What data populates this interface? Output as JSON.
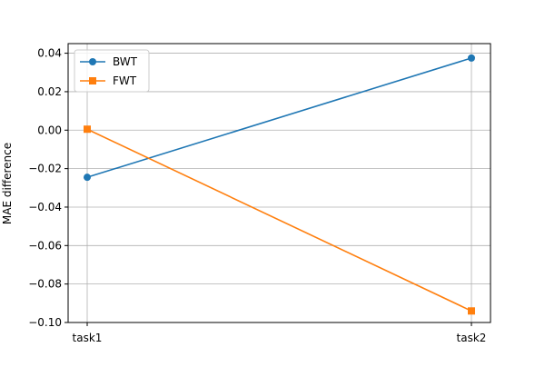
{
  "chart_data": {
    "type": "line",
    "title": "",
    "xlabel": "",
    "ylabel": "MAE difference",
    "categories": [
      "task1",
      "task2"
    ],
    "ylim": [
      -0.1,
      0.045
    ],
    "yticks": [
      -0.1,
      -0.08,
      -0.06,
      -0.04,
      -0.02,
      0.0,
      0.02,
      0.04
    ],
    "ytick_labels": [
      "−0.10",
      "−0.08",
      "−0.06",
      "−0.04",
      "−0.02",
      "0.00",
      "0.02",
      "0.04"
    ],
    "grid": true,
    "legend_position": "top-left",
    "series": [
      {
        "name": "BWT",
        "color": "#1f77b4",
        "marker": "circle",
        "values": [
          -0.0245,
          0.0375
        ]
      },
      {
        "name": "FWT",
        "color": "#ff7f0e",
        "marker": "square",
        "values": [
          0.0005,
          -0.094
        ]
      }
    ]
  }
}
